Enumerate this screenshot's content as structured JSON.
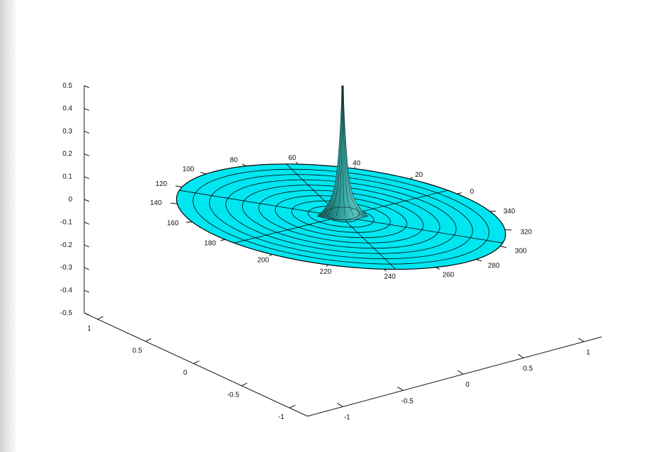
{
  "chart_data": {
    "type": "surface",
    "title": "",
    "xlabel": "",
    "ylabel": "",
    "zlabel": "",
    "surface_color": "#00e6f0",
    "edge_color": "#000000",
    "peak_z": 0.5,
    "base_z": 0,
    "x_axis": {
      "range": [
        -1,
        1
      ],
      "ticks": [
        -1,
        -0.5,
        0,
        0.5,
        1
      ],
      "tick_labels": [
        "-1",
        "-0.5",
        "0",
        "0.5",
        "1"
      ]
    },
    "y_axis": {
      "range": [
        -1,
        1
      ],
      "ticks": [
        -1,
        -0.5,
        0,
        0.5,
        1
      ],
      "tick_labels": [
        "-1",
        "-0.5",
        "0",
        "0.5",
        "1"
      ]
    },
    "z_axis": {
      "range": [
        -0.5,
        0.5
      ],
      "ticks": [
        0.5,
        0.4,
        0.3,
        0.2,
        0.1,
        0,
        -0.1,
        -0.2,
        -0.3,
        -0.4,
        -0.5
      ],
      "tick_labels": [
        "0.5",
        "0.4",
        "0.3",
        "0.2",
        "0.1",
        "0",
        "-0.1",
        "-0.2",
        "-0.3",
        "-0.4",
        "-0.5"
      ]
    },
    "polar_angle_labels": [
      "0",
      "20",
      "40",
      "60",
      "80",
      "100",
      "120",
      "140",
      "160",
      "180",
      "200",
      "220",
      "240",
      "260",
      "280",
      "300",
      "320",
      "340"
    ],
    "radial_ring_count": 10,
    "radial_spoke_angles": [
      30,
      90,
      150,
      210,
      270,
      330
    ]
  }
}
